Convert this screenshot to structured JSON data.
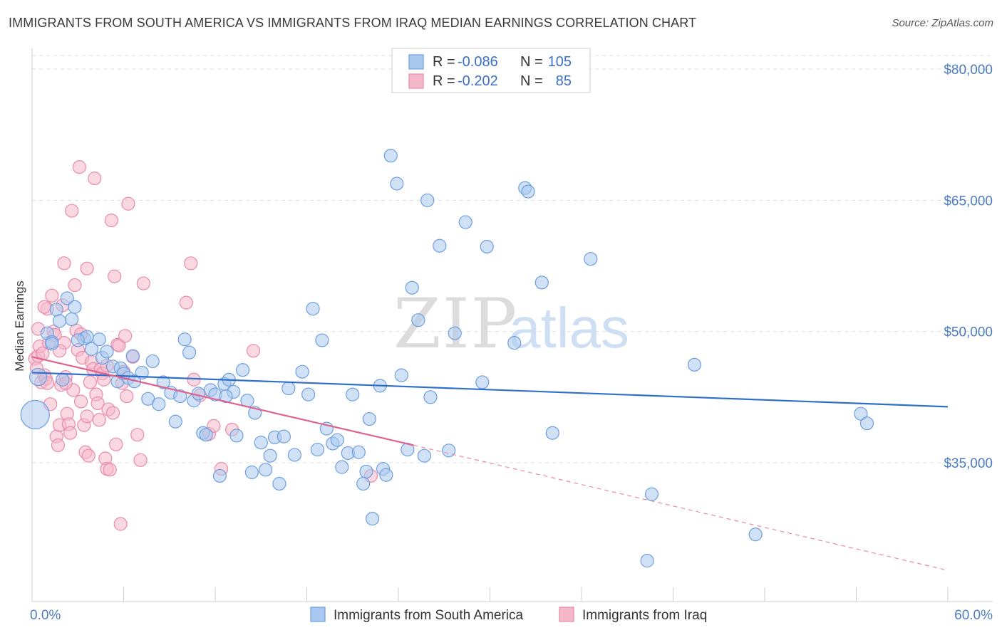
{
  "header": {
    "title": "IMMIGRANTS FROM SOUTH AMERICA VS IMMIGRANTS FROM IRAQ MEDIAN EARNINGS CORRELATION CHART",
    "source": "Source: ZipAtlas.com"
  },
  "watermark": {
    "zip": "ZIP",
    "atlas": "atlas"
  },
  "colors": {
    "blue_fill": "#aac8ef",
    "blue_stroke": "#6d9ee0",
    "blue_line": "#2f6fcc",
    "pink_fill": "#f5b8cb",
    "pink_stroke": "#e98aa8",
    "pink_line": "#e0628d",
    "axis_text": "#4a7cc4",
    "grid": "#dddddd"
  },
  "chart_data": {
    "type": "scatter",
    "title": "IMMIGRANTS FROM SOUTH AMERICA VS IMMIGRANTS FROM IRAQ MEDIAN EARNINGS CORRELATION CHART",
    "xlabel": "",
    "ylabel": "Median Earnings",
    "xlim": [
      0,
      60
    ],
    "ylim": [
      20000,
      86000
    ],
    "x_tick_labels": [
      "0.0%",
      "60.0%"
    ],
    "y_ticks": [
      35000,
      50000,
      65000,
      80000
    ],
    "y_tick_labels": [
      "$35,000",
      "$50,000",
      "$65,000",
      "$80,000"
    ],
    "grid": true,
    "legend": {
      "position": "top-center",
      "entries": [
        {
          "r_label": "R =",
          "r_value": "-0.086",
          "n_label": "N =",
          "n_value": "105"
        },
        {
          "r_label": "R =",
          "r_value": "-0.202",
          "n_label": "N =",
          "n_value": "85"
        }
      ]
    },
    "series": [
      {
        "name": "Immigrants from South America",
        "color": "#6d9ee0",
        "trend": {
          "x": [
            0,
            60
          ],
          "y": [
            45300,
            41400
          ]
        },
        "points": [
          [
            0.2,
            40500
          ],
          [
            0.4,
            44800
          ],
          [
            1.0,
            49800
          ],
          [
            1.3,
            48800
          ],
          [
            1.6,
            52500
          ],
          [
            1.8,
            51200
          ],
          [
            2.3,
            53800
          ],
          [
            2.6,
            51400
          ],
          [
            2.8,
            52800
          ],
          [
            3.4,
            49200
          ],
          [
            3.6,
            49400
          ],
          [
            3.9,
            48000
          ],
          [
            4.4,
            49100
          ],
          [
            4.6,
            47000
          ],
          [
            4.9,
            47700
          ],
          [
            5.3,
            46000
          ],
          [
            5.6,
            44300
          ],
          [
            5.8,
            45800
          ],
          [
            6.0,
            45200
          ],
          [
            6.3,
            44700
          ],
          [
            6.6,
            47200
          ],
          [
            7.2,
            45300
          ],
          [
            7.6,
            42300
          ],
          [
            7.9,
            46600
          ],
          [
            8.3,
            41700
          ],
          [
            8.6,
            44200
          ],
          [
            9.1,
            43000
          ],
          [
            9.4,
            39700
          ],
          [
            9.7,
            42600
          ],
          [
            10.0,
            49100
          ],
          [
            10.3,
            47600
          ],
          [
            10.6,
            42100
          ],
          [
            10.9,
            42900
          ],
          [
            11.2,
            38400
          ],
          [
            11.4,
            38200
          ],
          [
            11.7,
            43300
          ],
          [
            12.0,
            42800
          ],
          [
            12.3,
            33500
          ],
          [
            12.6,
            44000
          ],
          [
            12.9,
            44500
          ],
          [
            13.2,
            43100
          ],
          [
            13.4,
            38100
          ],
          [
            13.8,
            45600
          ],
          [
            14.1,
            42100
          ],
          [
            14.4,
            33900
          ],
          [
            14.6,
            40700
          ],
          [
            15.0,
            37300
          ],
          [
            15.3,
            34200
          ],
          [
            15.6,
            35800
          ],
          [
            15.9,
            37900
          ],
          [
            16.2,
            32600
          ],
          [
            16.5,
            38000
          ],
          [
            16.8,
            43500
          ],
          [
            17.2,
            35900
          ],
          [
            17.7,
            45400
          ],
          [
            18.1,
            42800
          ],
          [
            18.4,
            52600
          ],
          [
            18.7,
            36500
          ],
          [
            19.0,
            49000
          ],
          [
            19.3,
            38900
          ],
          [
            19.7,
            37200
          ],
          [
            20.0,
            37600
          ],
          [
            20.3,
            34500
          ],
          [
            20.7,
            36100
          ],
          [
            21.0,
            42800
          ],
          [
            21.4,
            36200
          ],
          [
            21.7,
            32600
          ],
          [
            21.9,
            34000
          ],
          [
            22.1,
            40000
          ],
          [
            22.3,
            28600
          ],
          [
            22.8,
            43800
          ],
          [
            23.0,
            34300
          ],
          [
            23.2,
            33600
          ],
          [
            23.5,
            70100
          ],
          [
            23.9,
            66900
          ],
          [
            24.2,
            45000
          ],
          [
            24.6,
            36500
          ],
          [
            24.9,
            55000
          ],
          [
            25.3,
            51300
          ],
          [
            25.7,
            35800
          ],
          [
            25.9,
            65000
          ],
          [
            26.1,
            42500
          ],
          [
            26.7,
            59800
          ],
          [
            27.3,
            36400
          ],
          [
            27.7,
            49800
          ],
          [
            28.4,
            62500
          ],
          [
            29.5,
            44200
          ],
          [
            29.8,
            59700
          ],
          [
            31.6,
            48700
          ],
          [
            32.3,
            66400
          ],
          [
            32.5,
            66000
          ],
          [
            33.4,
            55600
          ],
          [
            34.1,
            38400
          ],
          [
            36.6,
            58300
          ],
          [
            40.3,
            23800
          ],
          [
            40.6,
            31400
          ],
          [
            43.4,
            46200
          ],
          [
            47.4,
            26800
          ],
          [
            54.3,
            40600
          ],
          [
            54.7,
            39500
          ],
          [
            1.3,
            48600
          ],
          [
            3.0,
            49000
          ],
          [
            6.7,
            44300
          ],
          [
            12.7,
            42600
          ],
          [
            2.0,
            44500
          ]
        ]
      },
      {
        "name": "Immigrants from Iraq",
        "color": "#e98aa8",
        "trend": {
          "x": [
            0,
            25
          ],
          "y": [
            47100,
            37000
          ]
        },
        "dashed_extension": {
          "x": [
            25,
            60
          ],
          "y": [
            37000,
            22700
          ]
        },
        "points": [
          [
            0.2,
            46900
          ],
          [
            0.3,
            45800
          ],
          [
            0.4,
            47200
          ],
          [
            0.4,
            50300
          ],
          [
            0.5,
            48300
          ],
          [
            0.6,
            44200
          ],
          [
            0.7,
            47500
          ],
          [
            0.8,
            45000
          ],
          [
            0.9,
            44600
          ],
          [
            1.0,
            44100
          ],
          [
            1.1,
            48700
          ],
          [
            1.2,
            41700
          ],
          [
            1.3,
            54100
          ],
          [
            1.4,
            50000
          ],
          [
            1.5,
            49600
          ],
          [
            1.6,
            38000
          ],
          [
            1.7,
            37000
          ],
          [
            1.8,
            39300
          ],
          [
            1.9,
            43900
          ],
          [
            2.0,
            53000
          ],
          [
            2.1,
            48700
          ],
          [
            2.2,
            44800
          ],
          [
            2.3,
            40600
          ],
          [
            2.4,
            39400
          ],
          [
            2.5,
            38400
          ],
          [
            2.6,
            63800
          ],
          [
            2.7,
            43300
          ],
          [
            2.8,
            55300
          ],
          [
            2.9,
            50100
          ],
          [
            3.0,
            47900
          ],
          [
            3.1,
            68800
          ],
          [
            3.2,
            49700
          ],
          [
            3.3,
            47000
          ],
          [
            3.4,
            39300
          ],
          [
            3.5,
            36200
          ],
          [
            3.6,
            40300
          ],
          [
            3.7,
            35800
          ],
          [
            3.8,
            44200
          ],
          [
            3.9,
            46500
          ],
          [
            4.0,
            45700
          ],
          [
            4.1,
            67500
          ],
          [
            4.2,
            42800
          ],
          [
            4.3,
            41800
          ],
          [
            4.4,
            39900
          ],
          [
            4.5,
            45700
          ],
          [
            4.6,
            45200
          ],
          [
            4.7,
            44500
          ],
          [
            4.8,
            35500
          ],
          [
            4.9,
            34300
          ],
          [
            5.0,
            41100
          ],
          [
            5.1,
            34200
          ],
          [
            5.2,
            62700
          ],
          [
            5.3,
            40700
          ],
          [
            5.4,
            56300
          ],
          [
            5.5,
            37100
          ],
          [
            5.6,
            48500
          ],
          [
            5.7,
            48400
          ],
          [
            5.8,
            28000
          ],
          [
            5.9,
            44100
          ],
          [
            6.0,
            45400
          ],
          [
            6.1,
            49500
          ],
          [
            6.2,
            42600
          ],
          [
            6.3,
            64600
          ],
          [
            6.6,
            47100
          ],
          [
            6.9,
            38200
          ],
          [
            7.1,
            35300
          ],
          [
            7.3,
            55500
          ],
          [
            10.1,
            53300
          ],
          [
            10.4,
            57800
          ],
          [
            10.6,
            44500
          ],
          [
            11.0,
            42700
          ],
          [
            11.6,
            38300
          ],
          [
            11.9,
            39200
          ],
          [
            12.4,
            34300
          ],
          [
            13.1,
            38800
          ],
          [
            14.5,
            47800
          ],
          [
            22.2,
            33500
          ],
          [
            2.1,
            57800
          ],
          [
            3.6,
            57200
          ],
          [
            1.0,
            52600
          ],
          [
            1.8,
            47800
          ],
          [
            0.8,
            52800
          ],
          [
            2.2,
            44100
          ],
          [
            3.2,
            42000
          ],
          [
            4.9,
            46100
          ]
        ]
      }
    ]
  },
  "bottom_legend": {
    "items": [
      "Immigrants from South America",
      "Immigrants from Iraq"
    ]
  }
}
